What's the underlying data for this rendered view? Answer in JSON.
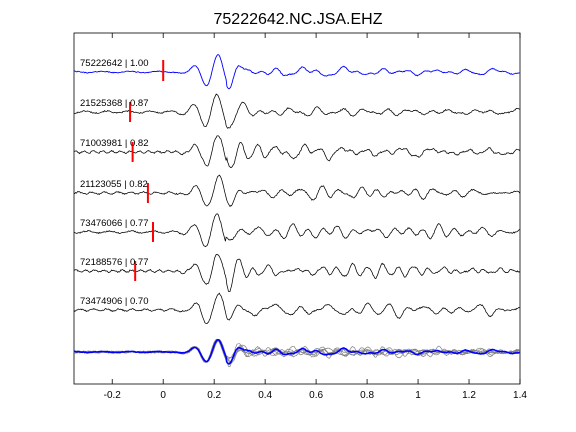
{
  "chart_data": {
    "type": "line",
    "title": "75222642.NC.JSA.EHZ",
    "xlabel": "",
    "ylabel": "",
    "xlim": [
      -0.35,
      1.4
    ],
    "xticks": [
      -0.2,
      0,
      0.2,
      0.4,
      0.6,
      0.8,
      1,
      1.2,
      1.4
    ],
    "xtick_labels": [
      "-0.2",
      "0",
      "0.2",
      "0.4",
      "0.6",
      "0.8",
      "1",
      "1.2",
      "1.4"
    ],
    "grid": false,
    "legend": "none",
    "template": {
      "event_id": "75222642",
      "correlation": "1.00",
      "pick_time": 0.0,
      "color": "#0000ff"
    },
    "series": [
      {
        "event_id": "21525368",
        "correlation": "0.87",
        "label": "21525368 | 0.87",
        "pick_time": -0.13
      },
      {
        "event_id": "71003981",
        "correlation": "0.82",
        "label": "71003981 | 0.82",
        "pick_time": -0.12
      },
      {
        "event_id": "21123055",
        "correlation": "0.82",
        "label": "21123055 | 0.82",
        "pick_time": -0.06
      },
      {
        "event_id": "73476066",
        "correlation": "0.77",
        "label": "73476066 | 0.77",
        "pick_time": -0.04
      },
      {
        "event_id": "72188576",
        "correlation": "0.77",
        "label": "72188576 | 0.77",
        "pick_time": -0.11
      },
      {
        "event_id": "73474906",
        "correlation": "0.70",
        "label": "73474906 | 0.70",
        "pick_time": null
      }
    ],
    "stack_panel": true,
    "colors": {
      "template": "#0000ff",
      "traces": "#000000",
      "stack_overlay": "#808080",
      "pick": "#ff0000"
    }
  }
}
